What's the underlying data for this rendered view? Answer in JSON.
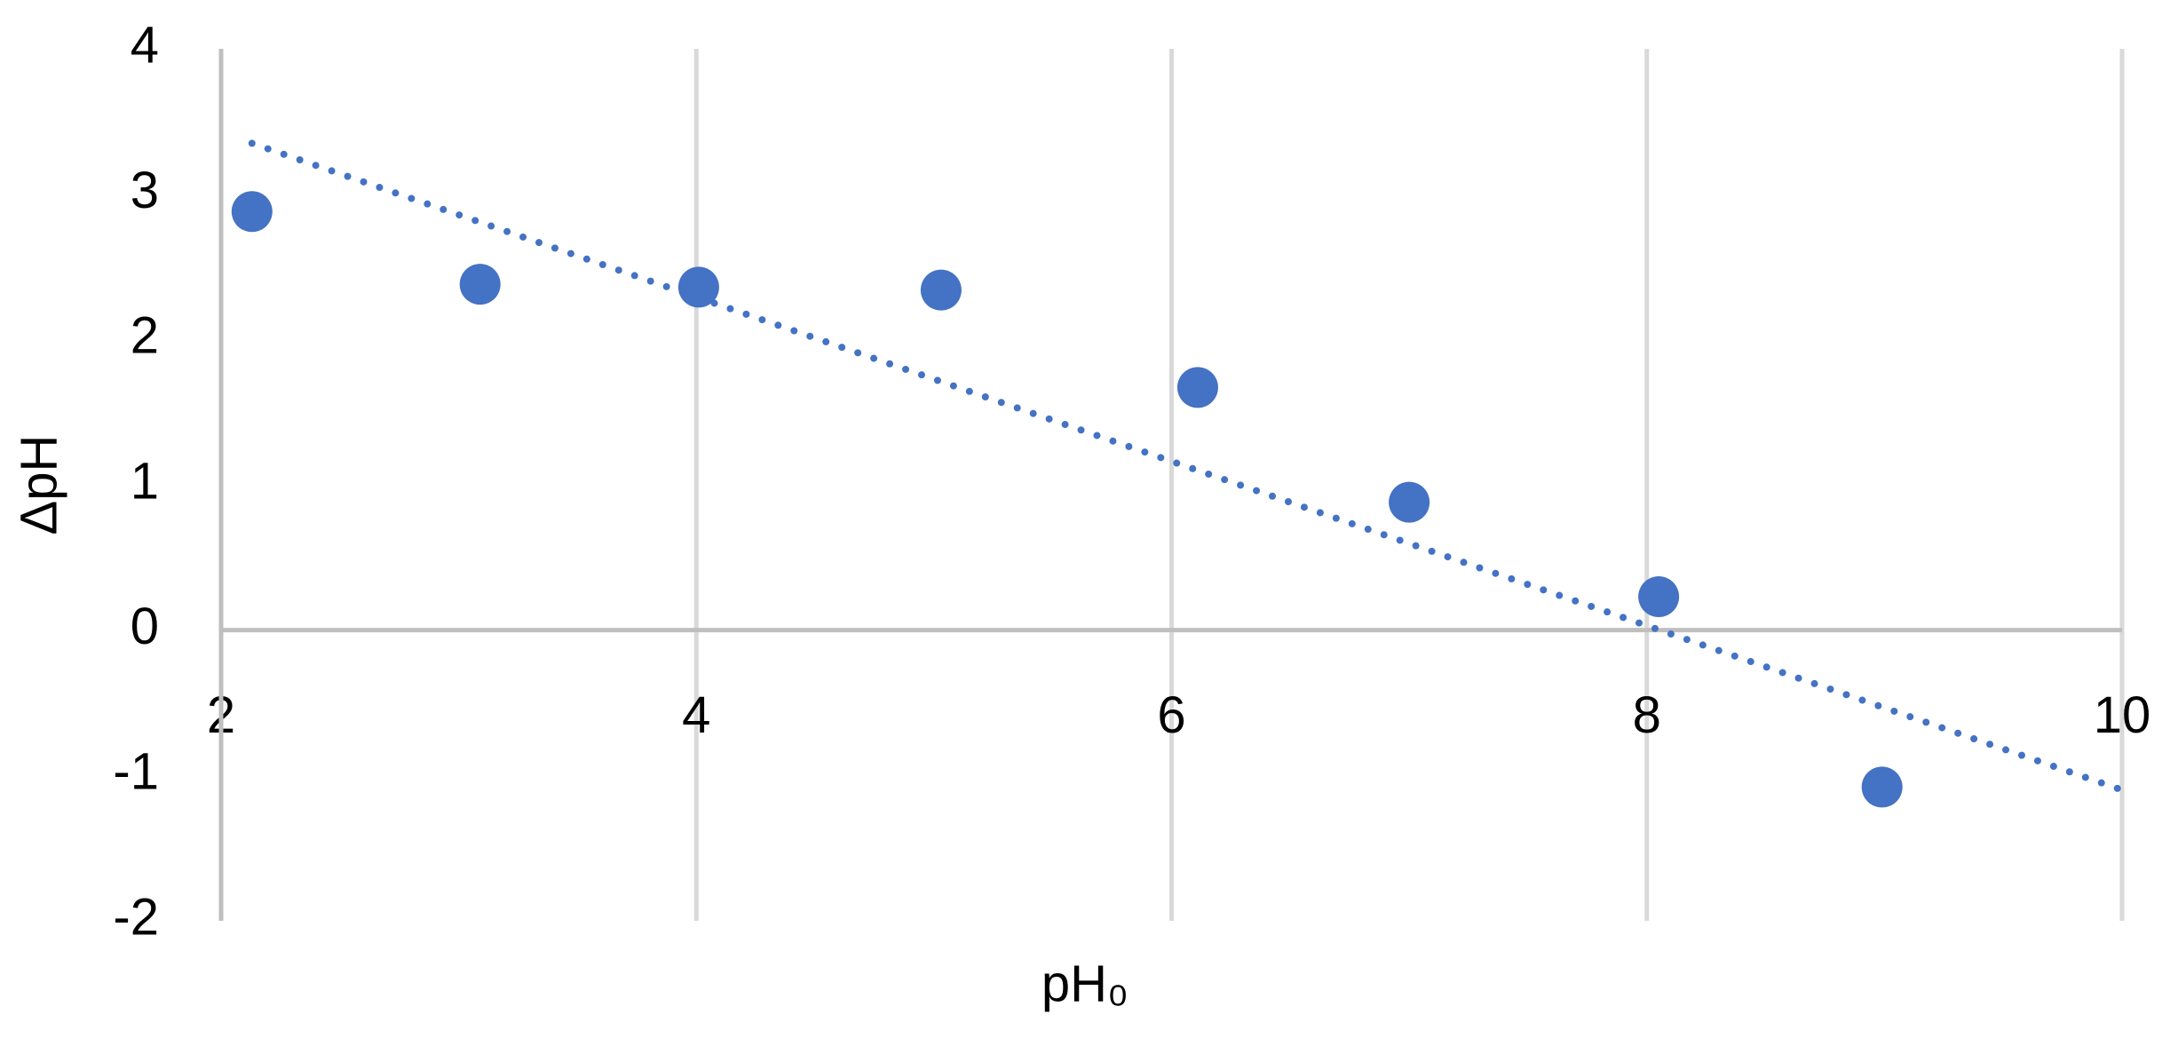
{
  "chart_data": {
    "type": "scatter",
    "x_label": "pH₀",
    "y_label": "ΔpH",
    "series": [
      {
        "color": "#4472c4",
        "x": [
          2.13,
          3.09,
          4.01,
          5.03,
          6.11,
          7.0,
          8.05,
          8.99
        ],
        "values": [
          2.88,
          2.38,
          2.36,
          2.34,
          1.67,
          0.88,
          0.23,
          -1.08
        ]
      }
    ],
    "trendline": {
      "color": "#4472c4",
      "style": "dotted",
      "x": [
        2.13,
        10
      ],
      "values": [
        3.35,
        -1.1
      ]
    },
    "xlim": [
      2,
      10
    ],
    "xticks": [
      2,
      4,
      6,
      8,
      10
    ],
    "ylim": [
      -2,
      4
    ],
    "yticks": [
      -2,
      -1,
      0,
      1,
      2,
      3,
      4
    ],
    "grid": "x"
  }
}
